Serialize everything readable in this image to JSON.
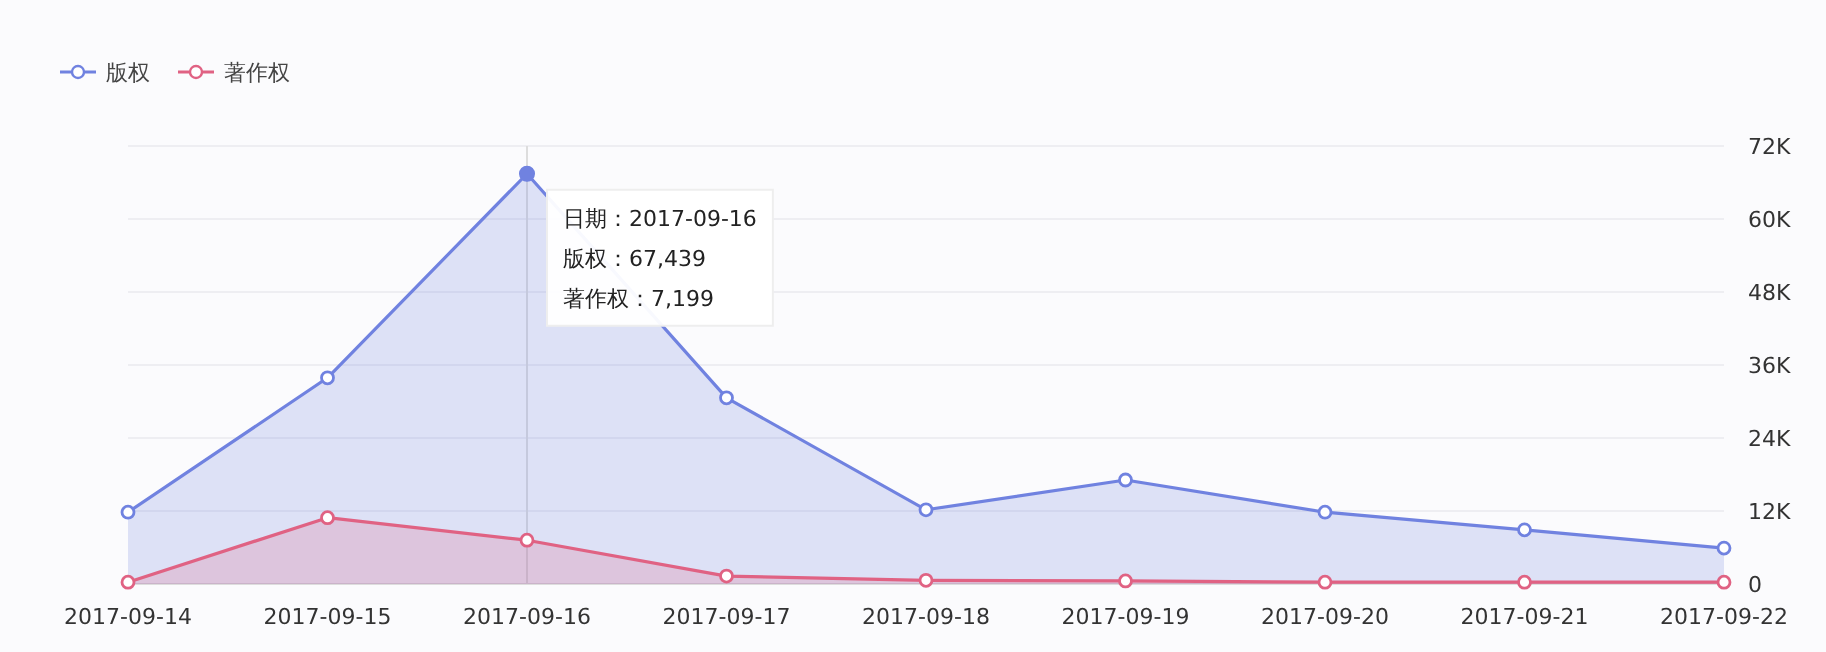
{
  "chart_data": {
    "type": "area",
    "categories": [
      "2017-09-14",
      "2017-09-15",
      "2017-09-16",
      "2017-09-17",
      "2017-09-18",
      "2017-09-19",
      "2017-09-20",
      "2017-09-21",
      "2017-09-22"
    ],
    "series": [
      {
        "name": "版权",
        "color": "#7082e0",
        "values": [
          11800,
          33900,
          67439,
          30600,
          12200,
          17100,
          11800,
          8900,
          5900
        ]
      },
      {
        "name": "著作权",
        "color": "#e06283",
        "values": [
          300,
          10900,
          7199,
          1300,
          600,
          500,
          300,
          300,
          300
        ]
      }
    ],
    "ylim": [
      0,
      72000
    ],
    "yticks": [
      {
        "value": 0,
        "label": "0"
      },
      {
        "value": 12000,
        "label": "12K"
      },
      {
        "value": 24000,
        "label": "24K"
      },
      {
        "value": 36000,
        "label": "36K"
      },
      {
        "value": 48000,
        "label": "48K"
      },
      {
        "value": 60000,
        "label": "60K"
      },
      {
        "value": 72000,
        "label": "72K"
      }
    ],
    "annotations": [
      {
        "text": "日期：2017-09-16\n版权：67,439\n著作权：7,199",
        "x": "2017-09-16",
        "y": 67439
      }
    ],
    "ref_lines": [
      {
        "axis": "x",
        "value": "2017-09-16",
        "color": "#dddddd"
      }
    ],
    "legend": "top left",
    "grid": "y",
    "marker": "circle"
  }
}
